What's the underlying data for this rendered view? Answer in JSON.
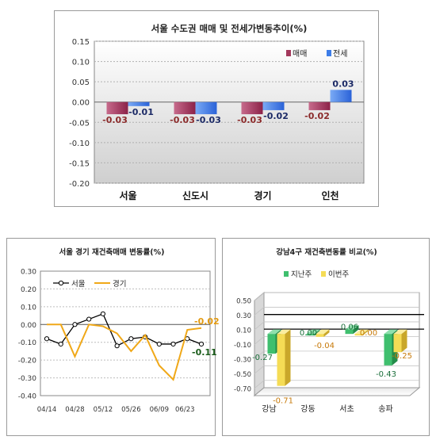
{
  "chart_data": [
    {
      "type": "bar",
      "title": "서울 수도권 매매 및 전세가변동추이(%)",
      "categories": [
        "서울",
        "신도시",
        "경기",
        "인천"
      ],
      "series": [
        {
          "name": "매매",
          "values": [
            -0.03,
            -0.03,
            -0.03,
            -0.02
          ],
          "labels": [
            "-0.03",
            "-0.03",
            "-0.03",
            "-0.02"
          ],
          "color": "#a3385c"
        },
        {
          "name": "전세",
          "values": [
            -0.01,
            -0.03,
            -0.02,
            0.03
          ],
          "labels": [
            "-0.01",
            "-0.03",
            "-0.02",
            "0.03"
          ],
          "color": "#3d7de8"
        }
      ],
      "ylim": [
        -0.2,
        0.15
      ],
      "yticks": [
        "0.15",
        "0.10",
        "0.05",
        "0.00",
        "-0.05",
        "-0.10",
        "-0.15",
        "-0.20"
      ],
      "legend": "top-right",
      "grid": true
    },
    {
      "type": "line",
      "title": "서울 경기 재건축매매 변동률(%)",
      "xticks": [
        "04/14",
        "04/28",
        "05/12",
        "05/26",
        "06/09",
        "06/23"
      ],
      "series": [
        {
          "name": "서울",
          "values": [
            -0.08,
            -0.11,
            0.0,
            0.03,
            0.06,
            -0.12,
            -0.08,
            -0.07,
            -0.11,
            -0.11,
            -0.08,
            -0.11
          ],
          "end_label": "-0.11",
          "color": "#000000"
        },
        {
          "name": "경기",
          "values": [
            0.0,
            0.0,
            -0.18,
            0.0,
            -0.01,
            -0.05,
            -0.15,
            -0.06,
            -0.23,
            -0.31,
            -0.03,
            -0.02
          ],
          "end_label": "-0.02",
          "color": "#f0a818"
        }
      ],
      "ylim": [
        -0.4,
        0.3
      ],
      "yticks": [
        "0.30",
        "0.20",
        "0.10",
        "0.00",
        "-0.10",
        "-0.20",
        "-0.30",
        "-0.40"
      ],
      "legend": "top-left",
      "grid": true
    },
    {
      "type": "bar",
      "title": "강남4구 재건축변동률 비교(%)",
      "categories": [
        "강남",
        "강동",
        "서초",
        "송파"
      ],
      "series": [
        {
          "name": "지난주",
          "values": [
            -0.27,
            0.0,
            0.06,
            -0.43
          ],
          "labels": [
            "-0.27",
            "0.00",
            "0.06",
            "-0.43"
          ],
          "color": "#3fbf6e"
        },
        {
          "name": "이번주",
          "values": [
            -0.71,
            -0.04,
            0.0,
            -0.25
          ],
          "labels": [
            "-0.71",
            "-0.04",
            "0.00",
            "-0.25"
          ],
          "color": "#f5dc55"
        }
      ],
      "ylim": [
        -0.8,
        0.5
      ],
      "yticks": [
        "0.50",
        "0.30",
        "0.10",
        "-0.10",
        "-0.30",
        "-0.50",
        "-0.70"
      ],
      "legend": "top",
      "grid": true
    }
  ]
}
